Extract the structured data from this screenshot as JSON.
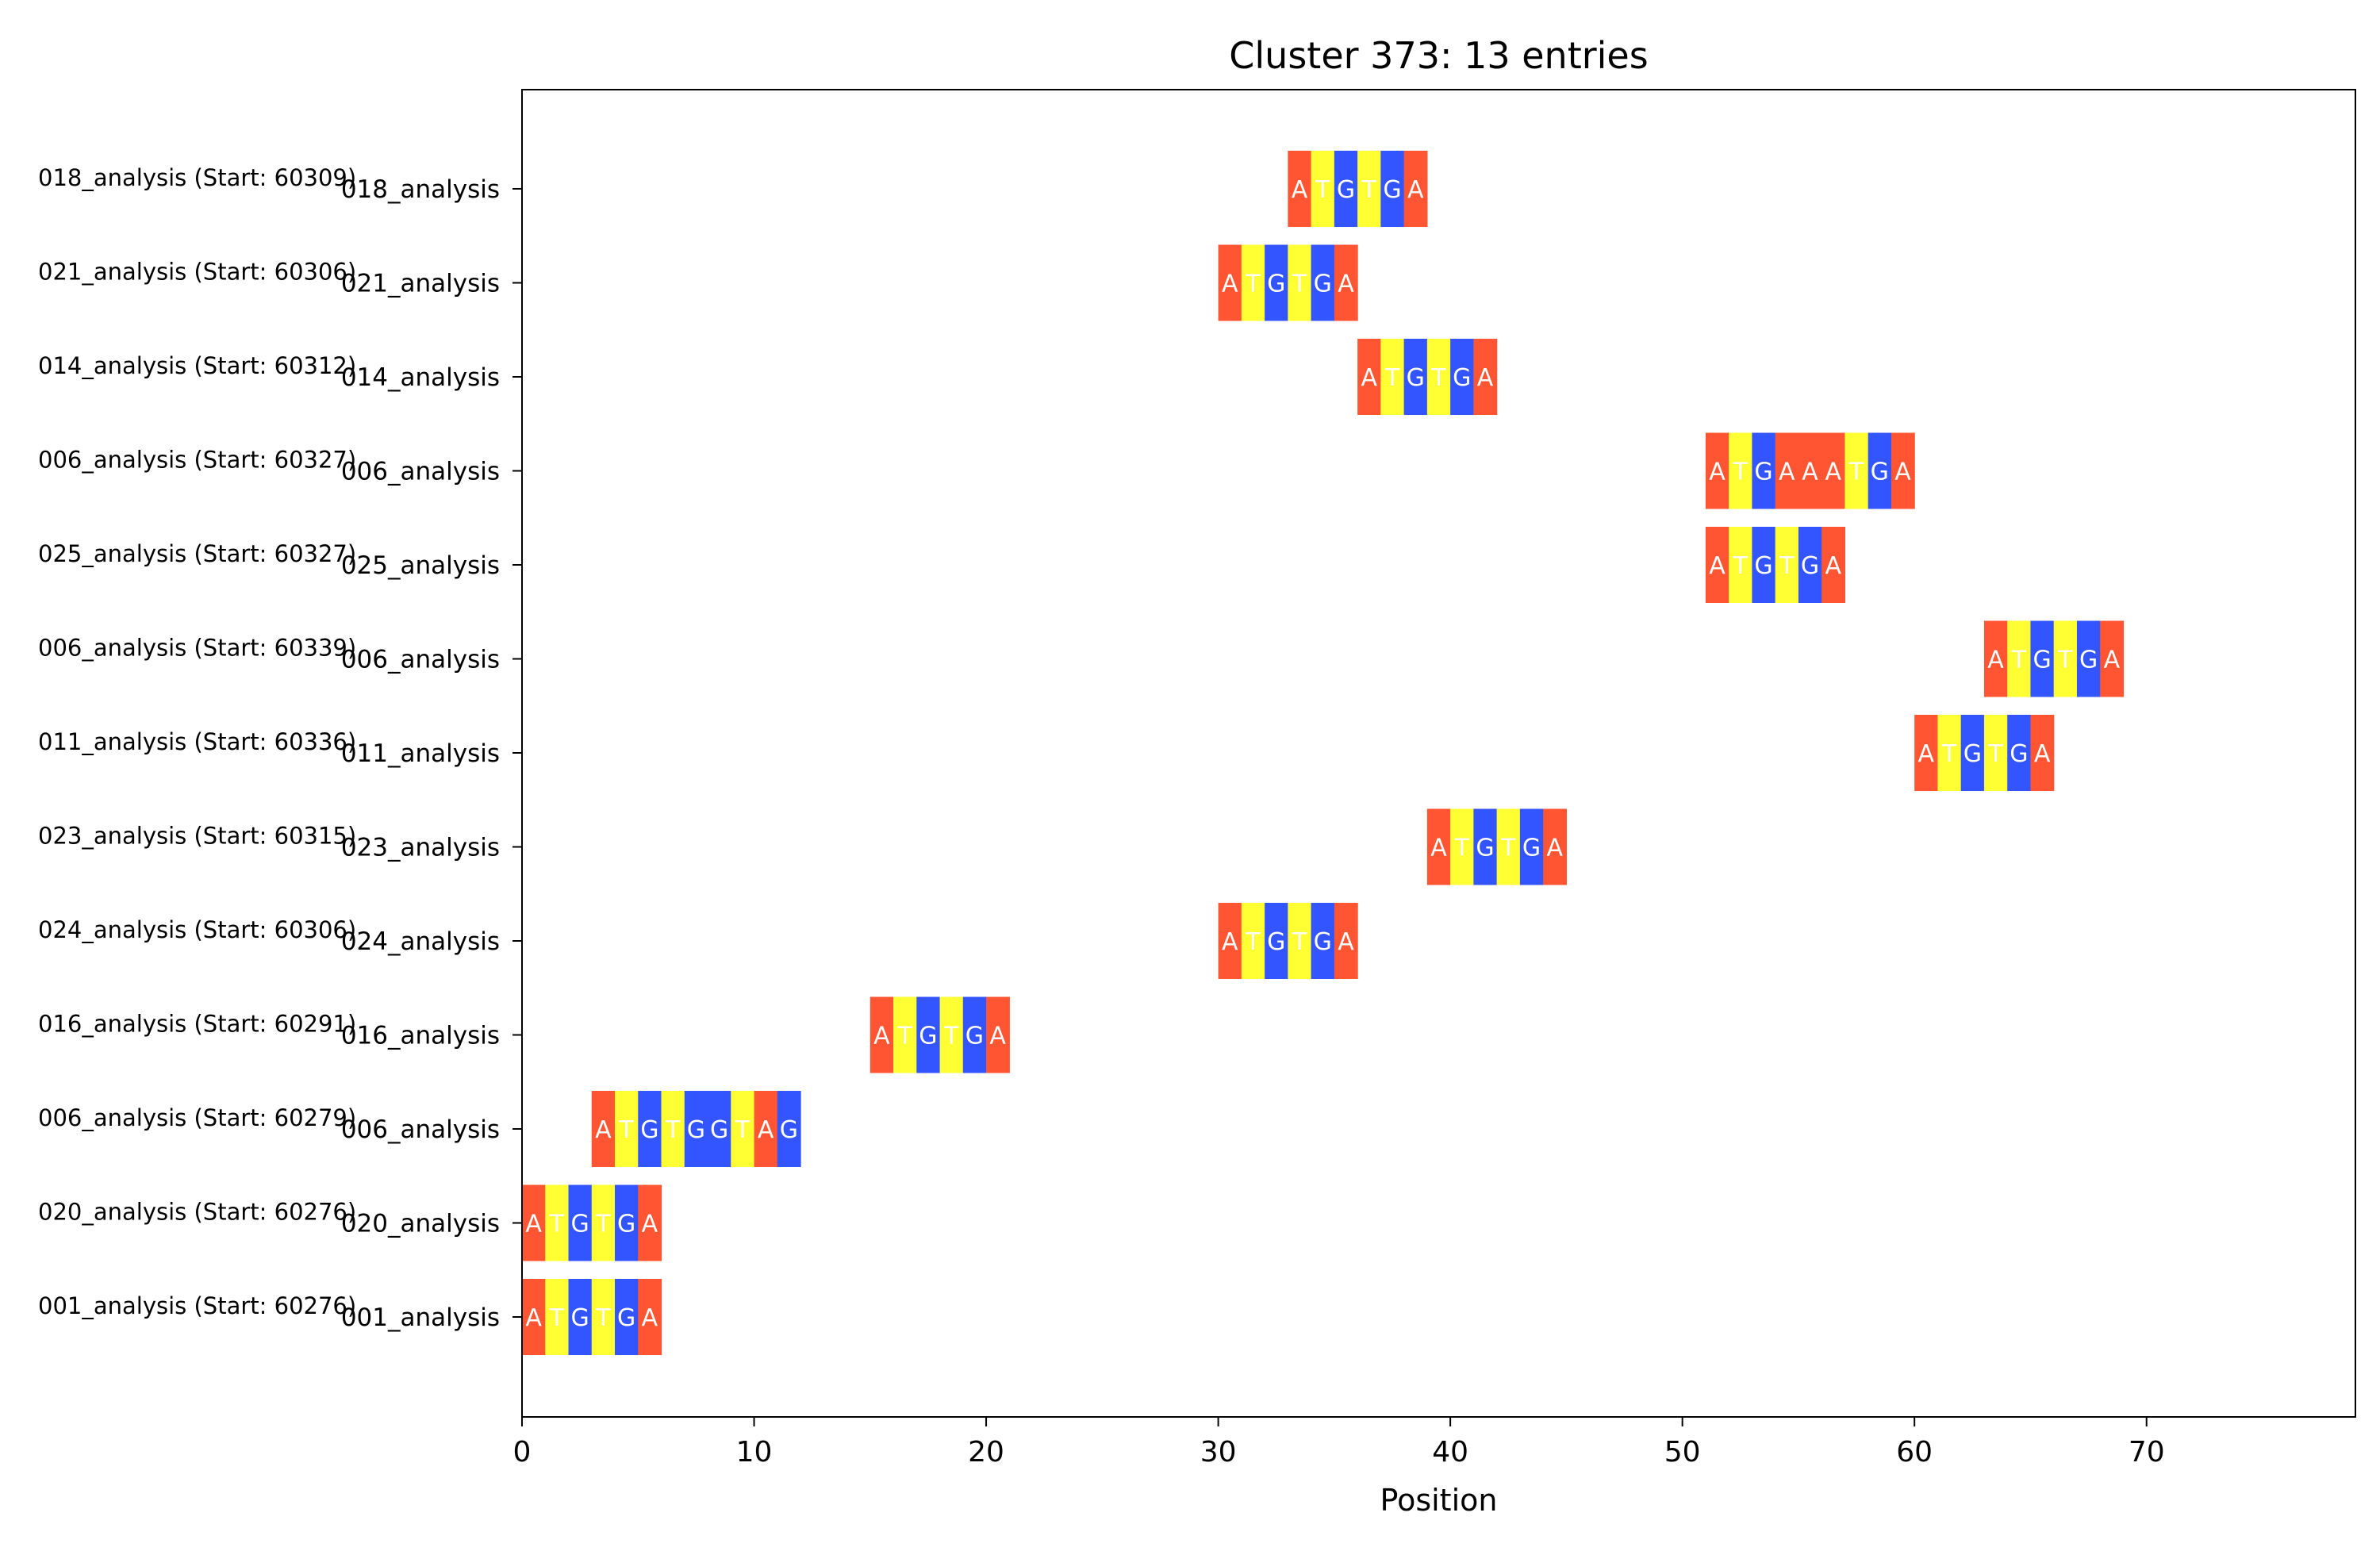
{
  "chart_data": {
    "type": "sequence-alignment",
    "title": "Cluster 373: 13 entries",
    "xlabel": "Position",
    "ylabel": "",
    "xlim": [
      0,
      79
    ],
    "xticks": [
      0,
      10,
      20,
      30,
      40,
      50,
      60,
      70
    ],
    "grid": false,
    "colors": {
      "A": "#ff5533",
      "T": "#ffff33",
      "G": "#3355ff"
    },
    "entries": [
      {
        "label": "018_analysis (Start: 60309)",
        "tick": "018_analysis",
        "start": 33,
        "sequence": "ATGTGA"
      },
      {
        "label": "021_analysis (Start: 60306)",
        "tick": "021_analysis",
        "start": 30,
        "sequence": "ATGTGA"
      },
      {
        "label": "014_analysis (Start: 60312)",
        "tick": "014_analysis",
        "start": 36,
        "sequence": "ATGTGA"
      },
      {
        "label": "006_analysis (Start: 60327)",
        "tick": "006_analysis",
        "start": 51,
        "sequence": "ATGAAATGA"
      },
      {
        "label": "025_analysis (Start: 60327)",
        "tick": "025_analysis",
        "start": 51,
        "sequence": "ATGTGA"
      },
      {
        "label": "006_analysis (Start: 60339)",
        "tick": "006_analysis",
        "start": 63,
        "sequence": "ATGTGA"
      },
      {
        "label": "011_analysis (Start: 60336)",
        "tick": "011_analysis",
        "start": 60,
        "sequence": "ATGTGA"
      },
      {
        "label": "023_analysis (Start: 60315)",
        "tick": "023_analysis",
        "start": 39,
        "sequence": "ATGTGA"
      },
      {
        "label": "024_analysis (Start: 60306)",
        "tick": "024_analysis",
        "start": 30,
        "sequence": "ATGTGA"
      },
      {
        "label": "016_analysis (Start: 60291)",
        "tick": "016_analysis",
        "start": 15,
        "sequence": "ATGTGA"
      },
      {
        "label": "006_analysis (Start: 60279)",
        "tick": "006_analysis",
        "start": 3,
        "sequence": "ATGTGGTAG"
      },
      {
        "label": "020_analysis (Start: 60276)",
        "tick": "020_analysis",
        "start": 0,
        "sequence": "ATGTGA"
      },
      {
        "label": "001_analysis (Start: 60276)",
        "tick": "001_analysis",
        "start": 0,
        "sequence": "ATGTGA"
      }
    ]
  }
}
